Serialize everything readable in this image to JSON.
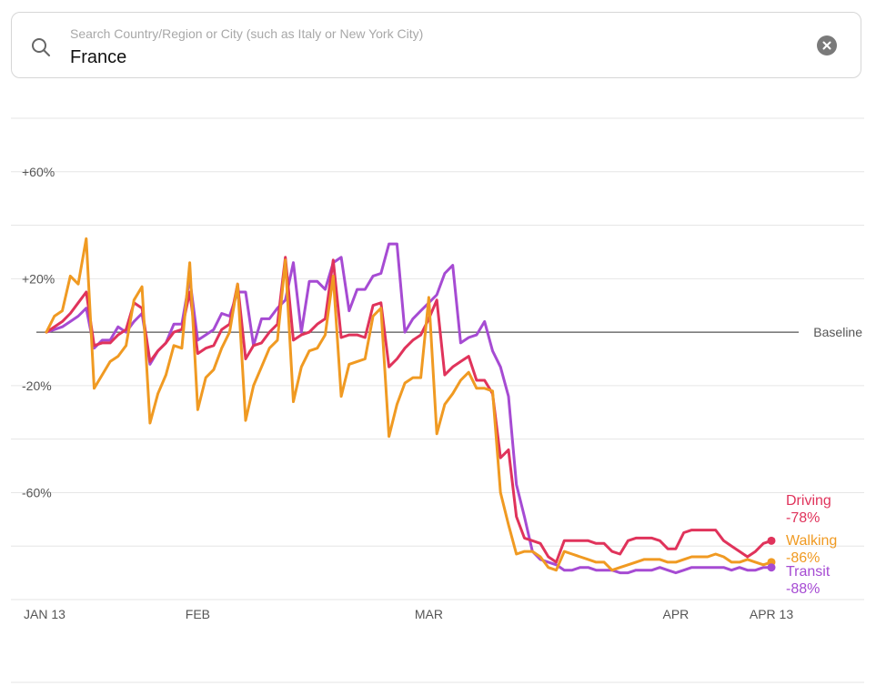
{
  "search": {
    "placeholder": "Search Country/Region or City (such as Italy or New York City)",
    "value": "France"
  },
  "icons": {
    "search": "search-icon",
    "clear": "clear-icon"
  },
  "chart_data": {
    "type": "line",
    "x_tick_labels": [
      "JAN 13",
      "FEB",
      "MAR",
      "APR",
      "APR 13"
    ],
    "x_tick_days": [
      0,
      19,
      48,
      79,
      91
    ],
    "y_tick_labels": [
      "+60%",
      "+20%",
      "-20%",
      "-60%"
    ],
    "y_tick_values": [
      60,
      20,
      -20,
      -60
    ],
    "ylim": [
      -100,
      80
    ],
    "xlim": [
      0,
      91
    ],
    "baseline_label": "Baseline",
    "grid": true,
    "series": [
      {
        "name": "Driving",
        "final_label": "-78%",
        "color": "#e0335b",
        "values": [
          0,
          2,
          4,
          7,
          11,
          15,
          -5,
          -4,
          -4,
          -1,
          1,
          11,
          9,
          -11,
          -7,
          -4,
          0,
          1,
          15,
          -8,
          -6,
          -5,
          1,
          3,
          18,
          -10,
          -5,
          -4,
          0,
          3,
          28,
          -3,
          -1,
          0,
          3,
          5,
          27,
          -2,
          -1,
          -1,
          -2,
          10,
          11,
          -13,
          -10,
          -6,
          -3,
          -1,
          5,
          12,
          -16,
          -13,
          -11,
          -9,
          -18,
          -18,
          -23,
          -47,
          -44,
          -69,
          -77,
          -78,
          -79,
          -84,
          -86,
          -78,
          -78,
          -78,
          -78,
          -79,
          -79,
          -82,
          -83,
          -78,
          -77,
          -77,
          -77,
          -78,
          -81,
          -81,
          -75,
          -74,
          -74,
          -74,
          -74,
          -78,
          -80,
          -82,
          -84,
          -82,
          -79,
          -78
        ]
      },
      {
        "name": "Walking",
        "final_label": "-86%",
        "color": "#f09a22",
        "values": [
          0,
          6,
          8,
          21,
          18,
          35,
          -21,
          -16,
          -11,
          -9,
          -5,
          12,
          17,
          -34,
          -23,
          -16,
          -5,
          -6,
          26,
          -29,
          -17,
          -14,
          -6,
          0,
          18,
          -33,
          -20,
          -13,
          -6,
          -3,
          27,
          -26,
          -13,
          -7,
          -6,
          -1,
          21,
          -24,
          -12,
          -11,
          -10,
          6,
          9,
          -39,
          -27,
          -19,
          -17,
          -17,
          13,
          -38,
          -27,
          -23,
          -18,
          -15,
          -21,
          -21,
          -22,
          -60,
          -72,
          -83,
          -82,
          -82,
          -84,
          -88,
          -89,
          -82,
          -83,
          -84,
          -85,
          -86,
          -86,
          -89,
          -88,
          -87,
          -86,
          -85,
          -85,
          -85,
          -86,
          -86,
          -85,
          -84,
          -84,
          -84,
          -83,
          -84,
          -86,
          -86,
          -85,
          -86,
          -87,
          -86
        ]
      },
      {
        "name": "Transit",
        "final_label": "-88%",
        "color": "#a64bd3",
        "values": [
          0,
          1,
          2,
          4,
          6,
          9,
          -6,
          -3,
          -3,
          2,
          0,
          4,
          7,
          -12,
          -7,
          -4,
          3,
          3,
          20,
          -3,
          -1,
          1,
          7,
          6,
          15,
          15,
          -5,
          5,
          5,
          9,
          12,
          26,
          0,
          19,
          19,
          16,
          26,
          28,
          8,
          16,
          16,
          21,
          22,
          33,
          33,
          0,
          5,
          8,
          11,
          14,
          22,
          25,
          -4,
          -2,
          -1,
          4,
          -7,
          -13,
          -24,
          -57,
          -69,
          -82,
          -85,
          -86,
          -87,
          -89,
          -89,
          -88,
          -88,
          -89,
          -89,
          -89,
          -90,
          -90,
          -89,
          -89,
          -89,
          -88,
          -89,
          -90,
          -89,
          -88,
          -88,
          -88,
          -88,
          -88,
          -89,
          -88,
          -89,
          -89,
          -88,
          -88
        ]
      }
    ]
  }
}
